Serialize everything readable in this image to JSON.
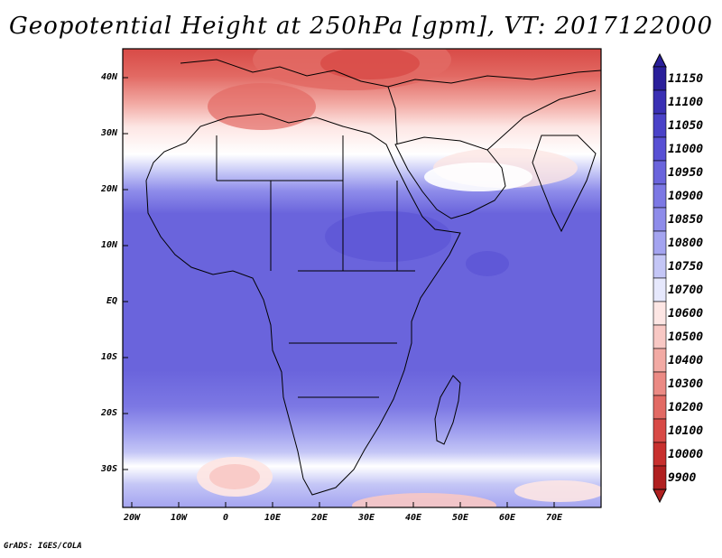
{
  "title": "Geopotential Height at 250hPa [gpm], VT: 2017122000",
  "credit": "GrADS: IGES/COLA",
  "map": {
    "lat_labels": [
      "40N",
      "30N",
      "20N",
      "10N",
      "EQ",
      "10S",
      "20S",
      "30S"
    ],
    "lon_labels": [
      "20W",
      "10W",
      "0",
      "10E",
      "20E",
      "30E",
      "40E",
      "50E",
      "60E",
      "70E"
    ],
    "lat_range": [
      -37,
      45
    ],
    "lon_range": [
      -22,
      80
    ]
  },
  "colorbar": {
    "levels": [
      "11150",
      "11100",
      "11050",
      "11000",
      "10950",
      "10900",
      "10850",
      "10800",
      "10750",
      "10700",
      "10600",
      "10500",
      "10400",
      "10300",
      "10200",
      "10100",
      "10000",
      "9900"
    ],
    "colors": [
      "#2a1f9a",
      "#3a30b4",
      "#4a42c8",
      "#5850d4",
      "#6a64dc",
      "#7c78e4",
      "#8e8cea",
      "#a4a4f0",
      "#c4c6f6",
      "#e6e8fc",
      "#fde6e4",
      "#f8c8c4",
      "#f2aaa4",
      "#eb8a84",
      "#e26a64",
      "#d84a46",
      "#c8302e",
      "#b02020"
    ]
  }
}
